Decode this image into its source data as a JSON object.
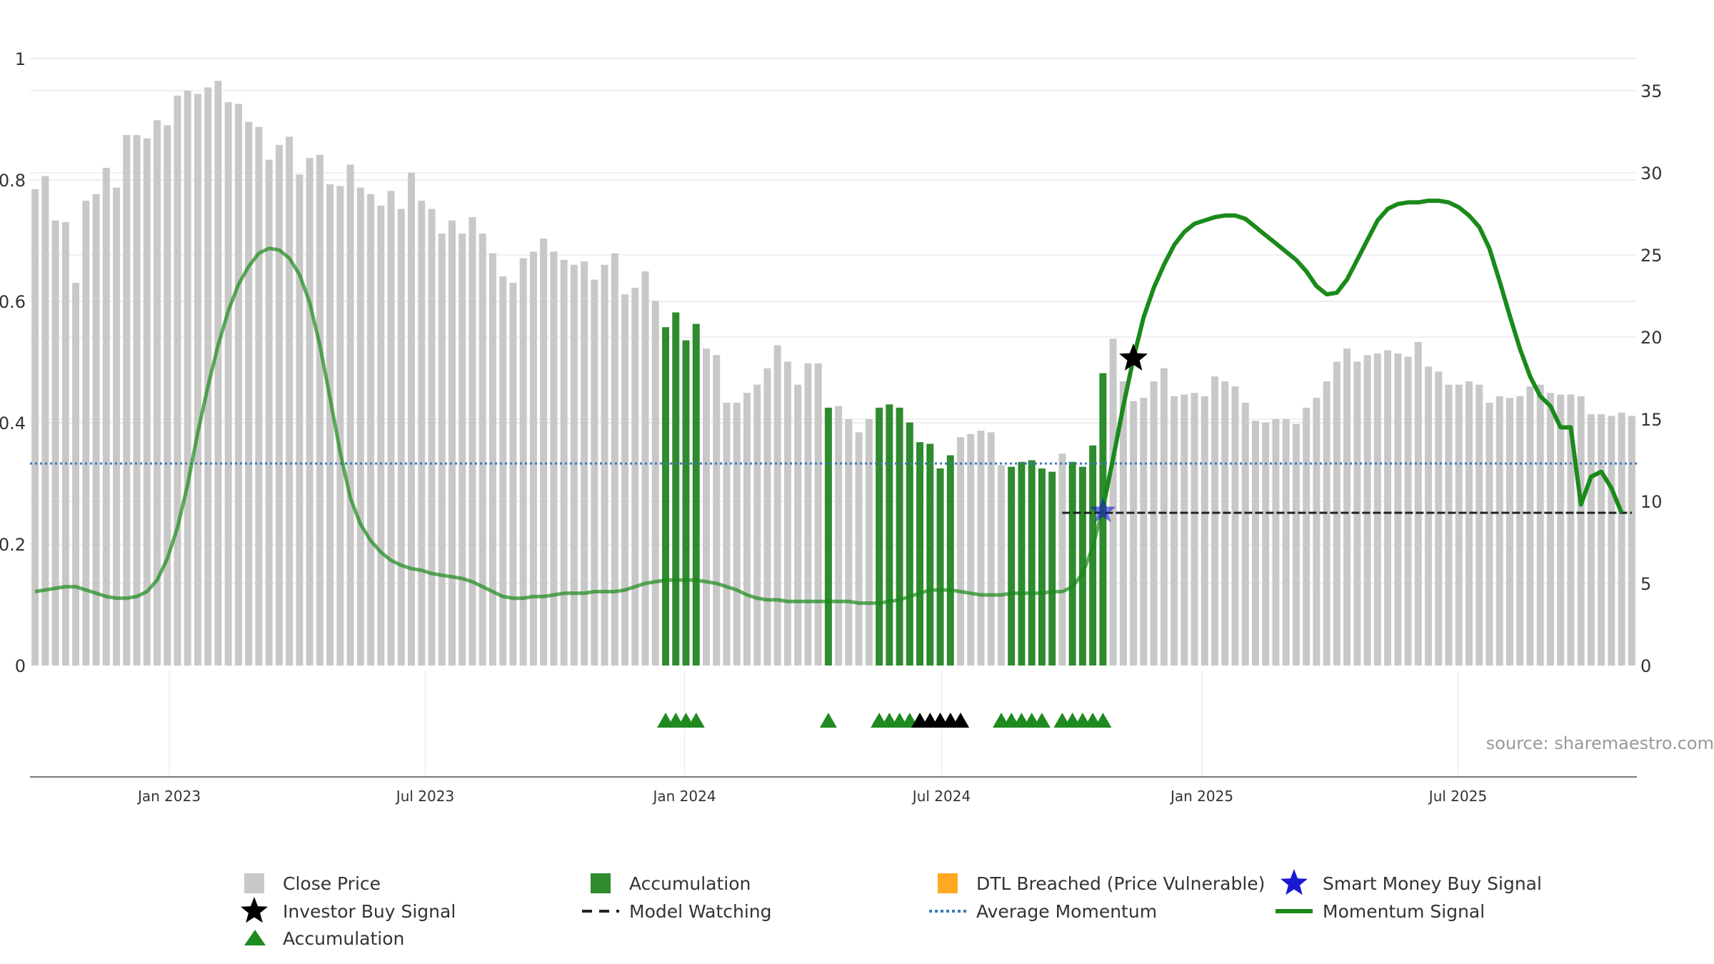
{
  "chart_data": {
    "type": "bar",
    "x_labels": [
      "Jan 2023",
      "Jul 2023",
      "Jan 2024",
      "Jul 2024",
      "Jan 2025",
      "Jul 2025"
    ],
    "left_axis": {
      "ylim": [
        0,
        1
      ],
      "tick_labels": [
        "0",
        "0.2",
        "0.4",
        "0.6",
        "0.8",
        "1"
      ]
    },
    "right_axis": {
      "ylim": [
        0,
        35
      ],
      "tick_labels": [
        "0",
        "5",
        "10",
        "15",
        "20",
        "25",
        "30",
        "35"
      ]
    },
    "grid": true,
    "source": "source: sharemaestro.com",
    "colors": {
      "close_price": "#c8c8c8",
      "accumulation_bar": "#2e8b2e",
      "momentum": "#1a8a1a",
      "average_momentum": "#3a7ab8",
      "model_watching": "#222222",
      "triangle_accumulation": "#1f8a1f",
      "investor_star": "#000000",
      "smart_star": "#1a1ad0",
      "dtl": "#ffa820"
    },
    "close_price": [
      29.0,
      29.8,
      27.1,
      27.0,
      23.3,
      28.3,
      28.7,
      30.3,
      29.1,
      32.3,
      32.3,
      32.1,
      33.2,
      32.9,
      34.7,
      35.0,
      34.8,
      35.2,
      35.6,
      34.3,
      34.2,
      33.1,
      32.8,
      30.8,
      31.7,
      32.2,
      29.9,
      30.9,
      31.1,
      29.3,
      29.2,
      30.5,
      29.1,
      28.7,
      28.0,
      28.9,
      27.8,
      30.0,
      28.3,
      27.8,
      26.3,
      27.1,
      26.3,
      27.3,
      26.3,
      25.1,
      23.7,
      23.3,
      24.8,
      25.2,
      26.0,
      25.2,
      24.7,
      24.4,
      24.6,
      23.5,
      24.4,
      25.1,
      22.6,
      23.0,
      24.0,
      22.2,
      20.6,
      21.5,
      19.8,
      20.8,
      19.3,
      18.9,
      16.0,
      16.0,
      16.6,
      17.1,
      18.1,
      19.5,
      18.5,
      17.1,
      18.4,
      18.4,
      15.7,
      15.8,
      15.0,
      14.2,
      15.0,
      15.7,
      15.9,
      15.7,
      14.8,
      13.6,
      13.5,
      12.0,
      12.8,
      13.9,
      14.1,
      14.3,
      14.2,
      12.2,
      12.1,
      12.4,
      12.5,
      12.0,
      11.8,
      12.9,
      12.4,
      12.1,
      13.4,
      17.8,
      19.9,
      17.3,
      16.1,
      16.3,
      17.3,
      18.1,
      16.4,
      16.5,
      16.6,
      16.4,
      17.6,
      17.3,
      17.0,
      16.0,
      14.9,
      14.8,
      15.0,
      15.0,
      14.7,
      15.7,
      16.3,
      17.3,
      18.5,
      19.3,
      18.5,
      18.9,
      19.0,
      19.2,
      19.0,
      18.8,
      19.7,
      18.2,
      17.9,
      17.1,
      17.1,
      17.3,
      17.1,
      16.0,
      16.4,
      16.3,
      16.4,
      17.0,
      17.1,
      16.6,
      16.5,
      16.5,
      16.4,
      15.3,
      15.3,
      15.2,
      15.4,
      15.2
    ],
    "accumulation_bar_indices": [
      62,
      63,
      64,
      65,
      78,
      83,
      84,
      85,
      86,
      87,
      88,
      89,
      90,
      96,
      97,
      98,
      99,
      100,
      102,
      103,
      104,
      105
    ],
    "momentum": [
      4.5,
      4.6,
      4.7,
      4.8,
      4.8,
      4.6,
      4.4,
      4.2,
      4.1,
      4.1,
      4.2,
      4.5,
      5.2,
      6.5,
      8.4,
      11.0,
      14.2,
      17.0,
      19.5,
      21.6,
      23.2,
      24.3,
      25.1,
      25.4,
      25.3,
      24.8,
      23.8,
      22.1,
      19.5,
      16.3,
      13.0,
      10.2,
      8.6,
      7.6,
      6.9,
      6.4,
      6.1,
      5.9,
      5.8,
      5.6,
      5.5,
      5.4,
      5.3,
      5.1,
      4.8,
      4.5,
      4.2,
      4.1,
      4.1,
      4.2,
      4.2,
      4.3,
      4.4,
      4.4,
      4.4,
      4.5,
      4.5,
      4.5,
      4.6,
      4.8,
      5.0,
      5.1,
      5.2,
      5.2,
      5.2,
      5.2,
      5.1,
      5.0,
      4.8,
      4.6,
      4.3,
      4.1,
      4.0,
      4.0,
      3.9,
      3.9,
      3.9,
      3.9,
      3.9,
      3.9,
      3.9,
      3.8,
      3.8,
      3.8,
      3.9,
      4.0,
      4.2,
      4.4,
      4.6,
      4.6,
      4.6,
      4.5,
      4.4,
      4.3,
      4.3,
      4.3,
      4.4,
      4.4,
      4.4,
      4.4,
      4.5,
      4.5,
      4.8,
      5.6,
      7.2,
      9.6,
      12.6,
      15.8,
      18.7,
      21.2,
      23.0,
      24.4,
      25.6,
      26.4,
      26.9,
      27.1,
      27.3,
      27.4,
      27.4,
      27.2,
      26.7,
      26.2,
      25.7,
      25.2,
      24.7,
      24.0,
      23.1,
      22.6,
      22.7,
      23.5,
      24.7,
      25.9,
      27.1,
      27.8,
      28.1,
      28.2,
      28.2,
      28.3,
      28.3,
      28.2,
      27.9,
      27.4,
      26.7,
      25.4,
      23.4,
      21.3,
      19.3,
      17.6,
      16.4,
      15.8,
      14.5,
      14.5,
      9.8,
      11.5,
      11.8,
      10.8,
      9.3
    ],
    "average_momentum": 12.3,
    "model_watching": {
      "start_index": 105,
      "end_index": 157,
      "level": 9.3
    },
    "triangle_indices": [
      62,
      63,
      64,
      65,
      78,
      83,
      84,
      85,
      86,
      87,
      89,
      90,
      91,
      95,
      96,
      97,
      98,
      99,
      101,
      102,
      103,
      104,
      105
    ],
    "black_triangle_indices": [
      87,
      88,
      89,
      90,
      91
    ],
    "investor_buy_signal": {
      "index": 108,
      "value": 18.7
    },
    "smart_money_buy_signal": {
      "index": 105,
      "value": 9.4
    },
    "legend_position": "bottom",
    "legend": [
      {
        "label": "Close Price",
        "symbol": "square-gray"
      },
      {
        "label": "Accumulation",
        "symbol": "square-green"
      },
      {
        "label": "DTL Breached (Price Vulnerable)",
        "symbol": "square-orange"
      },
      {
        "label": "Smart Money Buy Signal",
        "symbol": "star-blue"
      },
      {
        "label": "Investor Buy Signal",
        "symbol": "star-black"
      },
      {
        "label": "Model Watching",
        "symbol": "dash-black"
      },
      {
        "label": "Average Momentum",
        "symbol": "dotted-blue"
      },
      {
        "label": "Momentum Signal",
        "symbol": "line-green"
      },
      {
        "label": "Accumulation",
        "symbol": "triangle-green"
      }
    ]
  }
}
